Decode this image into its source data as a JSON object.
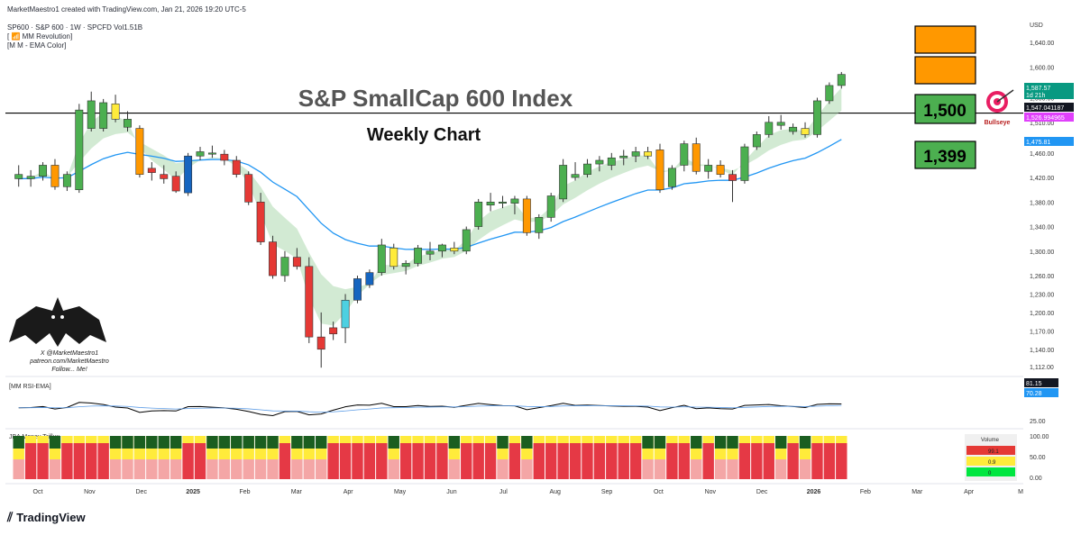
{
  "header": {
    "credit": "MarketMaestro1 created with TradingView.com, Jan 21, 2026 19:20 UTC-5",
    "symbol": "SP600 · S&P 600 · 1W · SPCFD  Vol1.51B",
    "indicator1": "[ 📶 MM Revolution]",
    "indicator2": "[M M - EMA Color]"
  },
  "title": "S&P SmallCap 600 Index",
  "subtitle": "Weekly Chart",
  "annotations": {
    "box_1500": "1,500",
    "box_1399": "1,399",
    "bullseye": "Bullseye",
    "bat_credit_lines": [
      "X @MarketMaestro1",
      "patreon.com/MarketMaestro",
      "Follow... Me!"
    ]
  },
  "footer_brand": "TradingView",
  "colors": {
    "up": "#4caf50",
    "down": "#e53935",
    "orange": "#ff9800",
    "yellow": "#ffeb3b",
    "blue": "#1565c0",
    "cyan": "#4dd0e1",
    "ema": "#2196f3",
    "orange_box": "#ff9800",
    "green_box": "#4caf50"
  },
  "chart_data": {
    "type": "candlestick",
    "currency": "USD",
    "x_labels": [
      "Oct",
      "Nov",
      "Dec",
      "2025",
      "Feb",
      "Mar",
      "Apr",
      "May",
      "Jun",
      "Jul",
      "Aug",
      "Sep",
      "Oct",
      "Nov",
      "Dec",
      "2026",
      "Feb",
      "Mar",
      "Apr",
      "M"
    ],
    "y_ticks": [
      "1,640.00",
      "1,600.00",
      "1,550.00",
      "1,510.00",
      "1,460.00",
      "1,420.00",
      "1,380.00",
      "1,340.00",
      "1,300.00",
      "1,260.00",
      "1,230.00",
      "1,200.00",
      "1,170.00",
      "1,140.00",
      "1,112.00"
    ],
    "ylim": [
      1100,
      1680
    ],
    "horizontal_line": 1525,
    "price_labels": [
      {
        "text": "1,587.57",
        "note": "1d 21h",
        "color": "#089981"
      },
      {
        "text": "1,547.041187",
        "color": "#ffffff"
      },
      {
        "text": "1,526.994965",
        "color": "#e040fb"
      },
      {
        "text": "1,475.81",
        "color": "#2196f3"
      }
    ],
    "candles": [
      {
        "o": 1425,
        "h": 1440,
        "l": 1405,
        "c": 1418,
        "col": "up"
      },
      {
        "o": 1418,
        "h": 1432,
        "l": 1405,
        "c": 1422,
        "col": "up"
      },
      {
        "o": 1422,
        "h": 1445,
        "l": 1415,
        "c": 1440,
        "col": "up"
      },
      {
        "o": 1440,
        "h": 1450,
        "l": 1400,
        "c": 1405,
        "col": "orange"
      },
      {
        "o": 1405,
        "h": 1430,
        "l": 1398,
        "c": 1425,
        "col": "up"
      },
      {
        "o": 1400,
        "h": 1540,
        "l": 1395,
        "c": 1530,
        "col": "up"
      },
      {
        "o": 1500,
        "h": 1560,
        "l": 1495,
        "c": 1545,
        "col": "up"
      },
      {
        "o": 1500,
        "h": 1548,
        "l": 1495,
        "c": 1542,
        "col": "up"
      },
      {
        "o": 1540,
        "h": 1555,
        "l": 1510,
        "c": 1515,
        "col": "yellow"
      },
      {
        "o": 1515,
        "h": 1528,
        "l": 1495,
        "c": 1502,
        "col": "up"
      },
      {
        "o": 1500,
        "h": 1505,
        "l": 1420,
        "c": 1425,
        "col": "orange"
      },
      {
        "o": 1435,
        "h": 1445,
        "l": 1415,
        "c": 1428,
        "col": "down"
      },
      {
        "o": 1425,
        "h": 1440,
        "l": 1410,
        "c": 1418,
        "col": "down"
      },
      {
        "o": 1422,
        "h": 1430,
        "l": 1395,
        "c": 1398,
        "col": "down"
      },
      {
        "o": 1395,
        "h": 1460,
        "l": 1390,
        "c": 1455,
        "col": "blue"
      },
      {
        "o": 1455,
        "h": 1470,
        "l": 1448,
        "c": 1462,
        "col": "up"
      },
      {
        "o": 1460,
        "h": 1472,
        "l": 1452,
        "c": 1458,
        "col": "up"
      },
      {
        "o": 1458,
        "h": 1465,
        "l": 1440,
        "c": 1448,
        "col": "down"
      },
      {
        "o": 1448,
        "h": 1455,
        "l": 1420,
        "c": 1425,
        "col": "down"
      },
      {
        "o": 1425,
        "h": 1430,
        "l": 1375,
        "c": 1380,
        "col": "down"
      },
      {
        "o": 1380,
        "h": 1395,
        "l": 1310,
        "c": 1315,
        "col": "down"
      },
      {
        "o": 1315,
        "h": 1325,
        "l": 1255,
        "c": 1260,
        "col": "down"
      },
      {
        "o": 1260,
        "h": 1300,
        "l": 1250,
        "c": 1290,
        "col": "up"
      },
      {
        "o": 1290,
        "h": 1305,
        "l": 1270,
        "c": 1275,
        "col": "down"
      },
      {
        "o": 1275,
        "h": 1290,
        "l": 1150,
        "c": 1160,
        "col": "down"
      },
      {
        "o": 1160,
        "h": 1200,
        "l": 1110,
        "c": 1140,
        "col": "down"
      },
      {
        "o": 1165,
        "h": 1185,
        "l": 1155,
        "c": 1175,
        "col": "down"
      },
      {
        "o": 1175,
        "h": 1230,
        "l": 1150,
        "c": 1220,
        "col": "cyan"
      },
      {
        "o": 1220,
        "h": 1260,
        "l": 1215,
        "c": 1255,
        "col": "blue"
      },
      {
        "o": 1245,
        "h": 1270,
        "l": 1240,
        "c": 1265,
        "col": "blue"
      },
      {
        "o": 1265,
        "h": 1320,
        "l": 1260,
        "c": 1310,
        "col": "up"
      },
      {
        "o": 1305,
        "h": 1312,
        "l": 1270,
        "c": 1275,
        "col": "yellow"
      },
      {
        "o": 1275,
        "h": 1285,
        "l": 1262,
        "c": 1280,
        "col": "up"
      },
      {
        "o": 1280,
        "h": 1310,
        "l": 1275,
        "c": 1305,
        "col": "up"
      },
      {
        "o": 1295,
        "h": 1315,
        "l": 1285,
        "c": 1300,
        "col": "up"
      },
      {
        "o": 1300,
        "h": 1312,
        "l": 1290,
        "c": 1310,
        "col": "up"
      },
      {
        "o": 1305,
        "h": 1315,
        "l": 1295,
        "c": 1300,
        "col": "yellow"
      },
      {
        "o": 1300,
        "h": 1340,
        "l": 1295,
        "c": 1335,
        "col": "up"
      },
      {
        "o": 1340,
        "h": 1385,
        "l": 1335,
        "c": 1380,
        "col": "up"
      },
      {
        "o": 1375,
        "h": 1395,
        "l": 1365,
        "c": 1380,
        "col": "up"
      },
      {
        "o": 1380,
        "h": 1390,
        "l": 1370,
        "c": 1378,
        "col": "up"
      },
      {
        "o": 1378,
        "h": 1390,
        "l": 1360,
        "c": 1385,
        "col": "up"
      },
      {
        "o": 1385,
        "h": 1390,
        "l": 1325,
        "c": 1330,
        "col": "orange"
      },
      {
        "o": 1330,
        "h": 1360,
        "l": 1320,
        "c": 1355,
        "col": "up"
      },
      {
        "o": 1355,
        "h": 1395,
        "l": 1348,
        "c": 1390,
        "col": "up"
      },
      {
        "o": 1385,
        "h": 1450,
        "l": 1380,
        "c": 1440,
        "col": "up"
      },
      {
        "o": 1420,
        "h": 1445,
        "l": 1415,
        "c": 1425,
        "col": "up"
      },
      {
        "o": 1425,
        "h": 1450,
        "l": 1420,
        "c": 1442,
        "col": "up"
      },
      {
        "o": 1442,
        "h": 1455,
        "l": 1430,
        "c": 1448,
        "col": "up"
      },
      {
        "o": 1440,
        "h": 1460,
        "l": 1432,
        "c": 1452,
        "col": "up"
      },
      {
        "o": 1452,
        "h": 1465,
        "l": 1440,
        "c": 1455,
        "col": "up"
      },
      {
        "o": 1455,
        "h": 1470,
        "l": 1445,
        "c": 1462,
        "col": "up"
      },
      {
        "o": 1462,
        "h": 1470,
        "l": 1450,
        "c": 1455,
        "col": "yellow"
      },
      {
        "o": 1465,
        "h": 1475,
        "l": 1395,
        "c": 1400,
        "col": "orange"
      },
      {
        "o": 1405,
        "h": 1440,
        "l": 1400,
        "c": 1435,
        "col": "up"
      },
      {
        "o": 1440,
        "h": 1480,
        "l": 1430,
        "c": 1475,
        "col": "up"
      },
      {
        "o": 1475,
        "h": 1485,
        "l": 1425,
        "c": 1430,
        "col": "orange"
      },
      {
        "o": 1430,
        "h": 1450,
        "l": 1418,
        "c": 1440,
        "col": "up"
      },
      {
        "o": 1440,
        "h": 1448,
        "l": 1420,
        "c": 1425,
        "col": "orange"
      },
      {
        "o": 1425,
        "h": 1432,
        "l": 1380,
        "c": 1415,
        "col": "down"
      },
      {
        "o": 1415,
        "h": 1475,
        "l": 1410,
        "c": 1470,
        "col": "up"
      },
      {
        "o": 1470,
        "h": 1495,
        "l": 1465,
        "c": 1490,
        "col": "up"
      },
      {
        "o": 1490,
        "h": 1520,
        "l": 1485,
        "c": 1510,
        "col": "up"
      },
      {
        "o": 1510,
        "h": 1522,
        "l": 1498,
        "c": 1505,
        "col": "up"
      },
      {
        "o": 1495,
        "h": 1508,
        "l": 1490,
        "c": 1502,
        "col": "up"
      },
      {
        "o": 1500,
        "h": 1510,
        "l": 1485,
        "c": 1490,
        "col": "yellow"
      },
      {
        "o": 1490,
        "h": 1550,
        "l": 1485,
        "c": 1545,
        "col": "up"
      },
      {
        "o": 1545,
        "h": 1575,
        "l": 1540,
        "c": 1570,
        "col": "up"
      },
      {
        "o": 1570,
        "h": 1592,
        "l": 1565,
        "c": 1588,
        "col": "up"
      }
    ],
    "indicators": {
      "rsi": {
        "label": "[MM RSI-EMA]",
        "value1": "81.15",
        "value2": "70.28",
        "tick": "25.00"
      },
      "money_flow": {
        "label": "JBA Money Triflux",
        "ticks": [
          "100.00",
          "50.00",
          "0.00"
        ],
        "legend_title": "Volume",
        "legend_values": [
          "99.1",
          "0.9",
          "0"
        ]
      }
    }
  }
}
